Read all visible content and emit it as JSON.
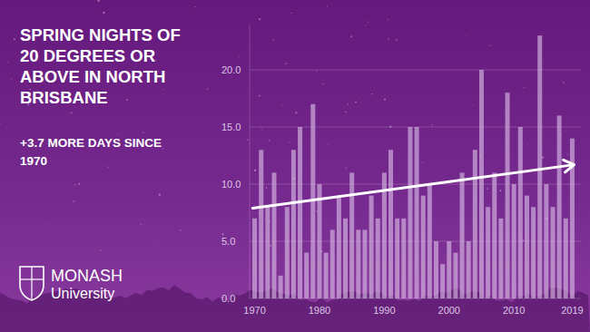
{
  "chart_data": {
    "type": "bar",
    "title": [
      "SPRING NIGHTS OF",
      "20 DEGREES OR",
      "ABOVE IN NORTH",
      "BRISBANE"
    ],
    "subtitle": [
      "+3.7 MORE DAYS SINCE",
      "1970"
    ],
    "categories": [
      "1970",
      null,
      null,
      null,
      null,
      null,
      null,
      null,
      null,
      null,
      "1980",
      null,
      null,
      null,
      null,
      null,
      null,
      null,
      null,
      null,
      "1990",
      null,
      null,
      null,
      null,
      null,
      null,
      null,
      null,
      null,
      "2000",
      null,
      null,
      null,
      null,
      null,
      null,
      null,
      null,
      null,
      "2010",
      null,
      null,
      null,
      null,
      null,
      null,
      null,
      null,
      "2019"
    ],
    "values": [
      7,
      13,
      8,
      11,
      2,
      8,
      13,
      15,
      4,
      17,
      10,
      4,
      6,
      9,
      7,
      11,
      6,
      6,
      9,
      7,
      11,
      13,
      7,
      7,
      15,
      15,
      9,
      10,
      5,
      3,
      5,
      4,
      11,
      5,
      13,
      20,
      8,
      11,
      7,
      18,
      10,
      15,
      9,
      8,
      23,
      10,
      8,
      16,
      7,
      14
    ],
    "trend": [
      7.9,
      11.7
    ],
    "color": "#dcbfe6",
    "ylim": [
      0,
      24
    ],
    "yticks": [
      {
        "value": 0,
        "label": "0.0"
      },
      {
        "value": 5,
        "label": "5.0"
      },
      {
        "value": 10,
        "label": "10.0"
      },
      {
        "value": 15,
        "label": "15.0"
      },
      {
        "value": 20,
        "label": "20.0"
      }
    ],
    "grid": true
  },
  "brand": [
    "MONASH",
    "University"
  ]
}
